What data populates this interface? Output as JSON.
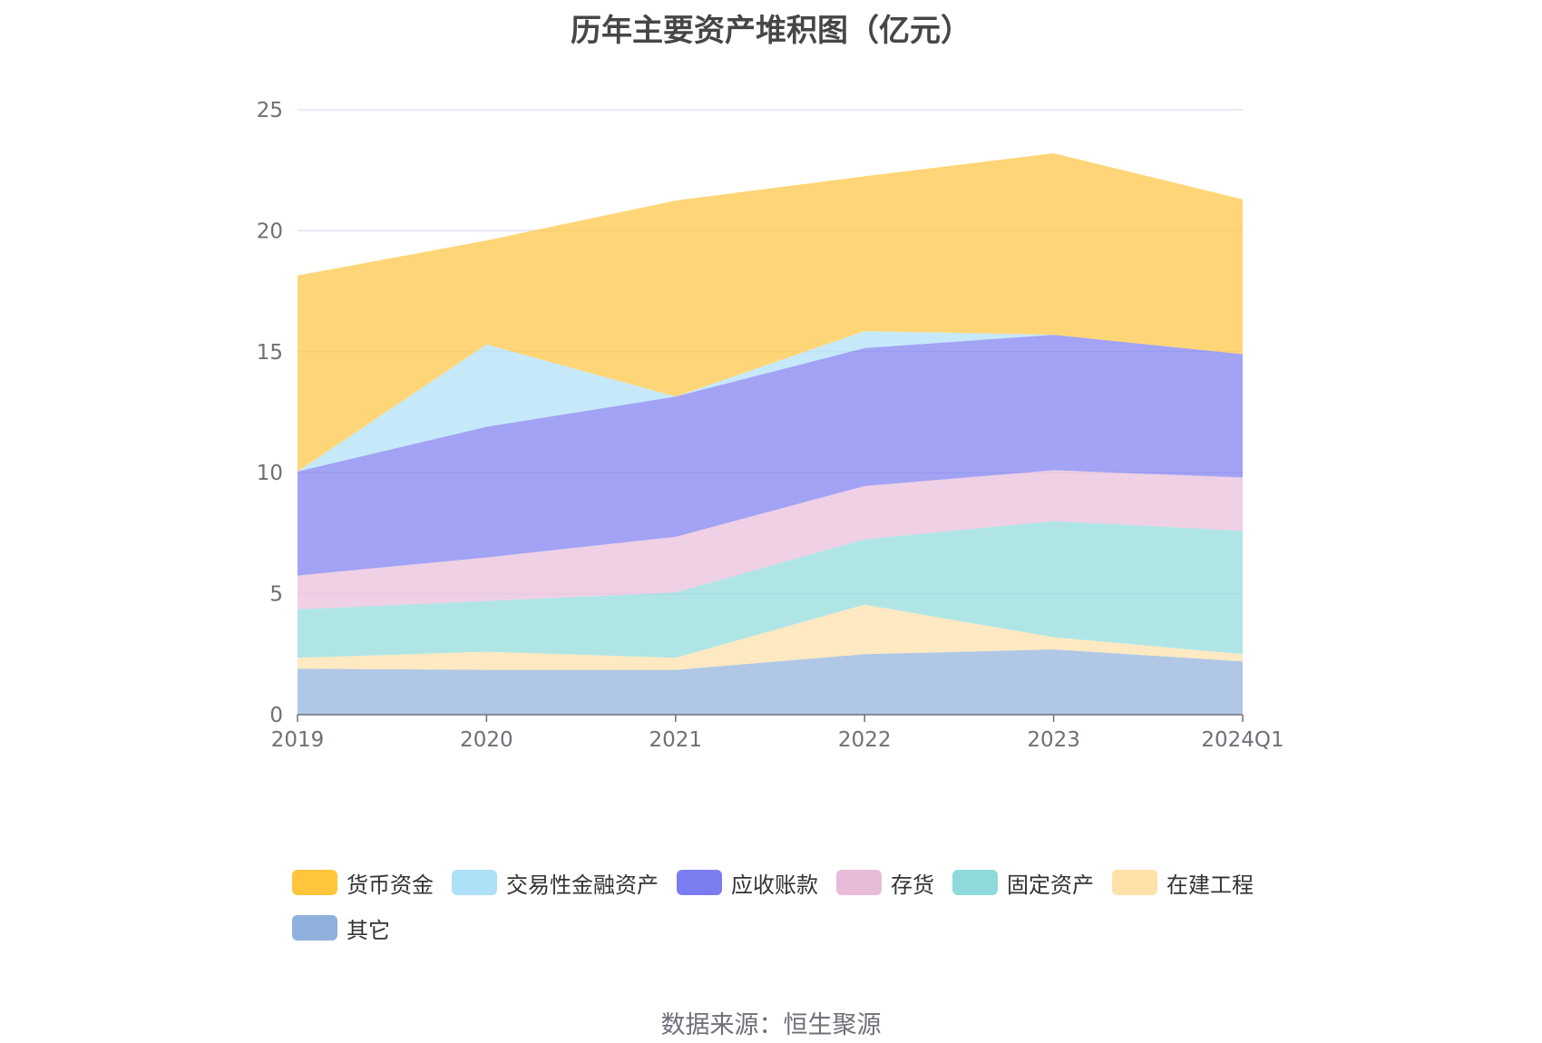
{
  "title": "历年主要资产堆积图（亿元）",
  "source": "数据来源：恒生聚源",
  "chart_data": {
    "type": "area",
    "stacked": true,
    "categories": [
      "2019",
      "2020",
      "2021",
      "2022",
      "2023",
      "2024Q1"
    ],
    "ylim": [
      0,
      25
    ],
    "yticks": [
      0,
      5,
      10,
      15,
      20,
      25
    ],
    "grid": true,
    "legend_position": "bottom",
    "series": [
      {
        "name": "其它",
        "color": "#8fb0dc",
        "values": [
          1.9,
          1.85,
          1.85,
          2.5,
          2.7,
          2.2
        ]
      },
      {
        "name": "在建工程",
        "color": "#ffe0a8",
        "values": [
          0.45,
          0.75,
          0.5,
          2.05,
          0.5,
          0.3
        ]
      },
      {
        "name": "固定资产",
        "color": "#8edadb",
        "values": [
          2.0,
          2.1,
          2.7,
          2.7,
          4.8,
          5.1
        ]
      },
      {
        "name": "存货",
        "color": "#e8bcd9",
        "values": [
          1.4,
          1.8,
          2.3,
          2.2,
          2.1,
          2.2
        ]
      },
      {
        "name": "应收账款",
        "color": "#7b7cf0",
        "values": [
          4.3,
          5.4,
          5.8,
          5.7,
          5.6,
          5.1
        ]
      },
      {
        "name": "交易性金融资产",
        "color": "#aee0f8",
        "values": [
          0.0,
          3.4,
          0.0,
          0.7,
          0.0,
          0.0
        ]
      },
      {
        "name": "货币资金",
        "color": "#ffc53d",
        "values": [
          8.1,
          4.3,
          8.1,
          6.4,
          7.5,
          6.4
        ]
      }
    ]
  },
  "legend_order": [
    "货币资金",
    "交易性金融资产",
    "应收账款",
    "存货",
    "固定资产",
    "在建工程",
    "其它"
  ]
}
